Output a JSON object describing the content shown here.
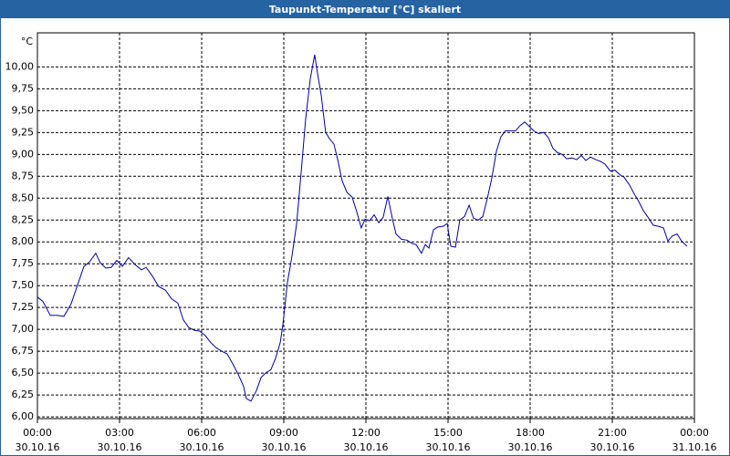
{
  "chart_data": {
    "type": "line",
    "title": "Taupunkt-Temperatur [°C] skaliert",
    "y_unit": "°C",
    "xlim": [
      0,
      24
    ],
    "xticks": [
      {
        "value": 0,
        "label": "00:00"
      },
      {
        "value": 3,
        "label": "03:00"
      },
      {
        "value": 6,
        "label": "06:00"
      },
      {
        "value": 9,
        "label": "09:00"
      },
      {
        "value": 12,
        "label": "12:00"
      },
      {
        "value": 15,
        "label": "15:00"
      },
      {
        "value": 18,
        "label": "18:00"
      },
      {
        "value": 21,
        "label": "21:00"
      },
      {
        "value": 24,
        "label": "00:00"
      }
    ],
    "xtick_dates": [
      "30.10.16",
      "30.10.16",
      "30.10.16",
      "30.10.16",
      "30.10.16",
      "30.10.16",
      "30.10.16",
      "30.10.16",
      "31.10.16"
    ],
    "ylim": [
      5.98,
      10.39
    ],
    "yticks": [
      {
        "value": 6,
        "label": "6,00"
      },
      {
        "value": 6.25,
        "label": "6,25"
      },
      {
        "value": 6.5,
        "label": "6,50"
      },
      {
        "value": 6.75,
        "label": "6,75"
      },
      {
        "value": 7,
        "label": "7,00"
      },
      {
        "value": 7.25,
        "label": "7,25"
      },
      {
        "value": 7.5,
        "label": "7,50"
      },
      {
        "value": 7.75,
        "label": "7,75"
      },
      {
        "value": 8,
        "label": "8,00"
      },
      {
        "value": 8.25,
        "label": "8,25"
      },
      {
        "value": 8.5,
        "label": "8,50"
      },
      {
        "value": 8.75,
        "label": "8,75"
      },
      {
        "value": 9,
        "label": "9,00"
      },
      {
        "value": 9.25,
        "label": "9,25"
      },
      {
        "value": 9.5,
        "label": "9,50"
      },
      {
        "value": 9.75,
        "label": "9,75"
      },
      {
        "value": 10,
        "label": "10,00"
      }
    ],
    "grid": true,
    "color": "#0000a0",
    "x": [
      0,
      0.2,
      0.47,
      0.7,
      0.97,
      1.23,
      1.47,
      1.7,
      1.9,
      2.13,
      2.3,
      2.5,
      2.7,
      2.9,
      3.1,
      3.33,
      3.57,
      3.8,
      3.97,
      4.2,
      4.43,
      4.67,
      4.9,
      5.13,
      5.33,
      5.53,
      5.73,
      5.93,
      6.13,
      6.33,
      6.53,
      6.73,
      6.93,
      7.13,
      7.33,
      7.53,
      7.63,
      7.8,
      8.0,
      8.17,
      8.33,
      8.53,
      8.7,
      8.87,
      8.97,
      9.13,
      9.3,
      9.47,
      9.63,
      9.8,
      9.97,
      10.13,
      10.23,
      10.37,
      10.53,
      10.67,
      10.83,
      10.97,
      11.13,
      11.3,
      11.5,
      11.67,
      11.83,
      11.97,
      12.13,
      12.3,
      12.47,
      12.63,
      12.8,
      12.97,
      13.1,
      13.3,
      13.5,
      13.7,
      13.83,
      14.03,
      14.17,
      14.3,
      14.47,
      14.63,
      14.83,
      14.97,
      15.1,
      15.27,
      15.43,
      15.6,
      15.77,
      15.93,
      16.1,
      16.27,
      16.43,
      16.6,
      16.77,
      16.93,
      17.1,
      17.3,
      17.47,
      17.63,
      17.8,
      17.97,
      18.13,
      18.3,
      18.5,
      18.67,
      18.83,
      19.0,
      19.17,
      19.33,
      19.53,
      19.7,
      19.87,
      20.03,
      20.2,
      20.4,
      20.57,
      20.73,
      20.93,
      21.1,
      21.27,
      21.43,
      21.63,
      21.8,
      21.97,
      22.13,
      22.33,
      22.5,
      22.67,
      22.87,
      23.03,
      23.2,
      23.37,
      23.53,
      23.73
    ],
    "values": [
      7.37,
      7.32,
      7.16,
      7.16,
      7.15,
      7.29,
      7.51,
      7.72,
      7.77,
      7.87,
      7.76,
      7.7,
      7.71,
      7.79,
      7.72,
      7.82,
      7.74,
      7.68,
      7.71,
      7.61,
      7.49,
      7.45,
      7.35,
      7.3,
      7.11,
      7.02,
      6.99,
      6.98,
      6.93,
      6.85,
      6.79,
      6.75,
      6.72,
      6.61,
      6.49,
      6.35,
      6.21,
      6.18,
      6.3,
      6.45,
      6.5,
      6.54,
      6.67,
      6.85,
      7.06,
      7.53,
      7.84,
      8.21,
      8.78,
      9.41,
      9.87,
      10.14,
      9.93,
      9.67,
      9.25,
      9.18,
      9.12,
      8.94,
      8.7,
      8.57,
      8.51,
      8.34,
      8.16,
      8.26,
      8.24,
      8.31,
      8.22,
      8.28,
      8.52,
      8.26,
      8.09,
      8.03,
      8.02,
      7.98,
      7.97,
      7.87,
      7.97,
      7.93,
      8.14,
      8.17,
      8.18,
      8.21,
      7.95,
      7.94,
      8.25,
      8.29,
      8.42,
      8.27,
      8.25,
      8.29,
      8.49,
      8.73,
      9.04,
      9.2,
      9.27,
      9.27,
      9.27,
      9.33,
      9.37,
      9.32,
      9.27,
      9.24,
      9.25,
      9.19,
      9.07,
      9.02,
      9.0,
      8.95,
      8.96,
      8.94,
      8.99,
      8.93,
      8.97,
      8.94,
      8.92,
      8.89,
      8.81,
      8.82,
      8.77,
      8.74,
      8.65,
      8.55,
      8.46,
      8.36,
      8.27,
      8.19,
      8.18,
      8.16,
      8.01,
      8.07,
      8.09,
      8.01,
      7.95
    ]
  }
}
